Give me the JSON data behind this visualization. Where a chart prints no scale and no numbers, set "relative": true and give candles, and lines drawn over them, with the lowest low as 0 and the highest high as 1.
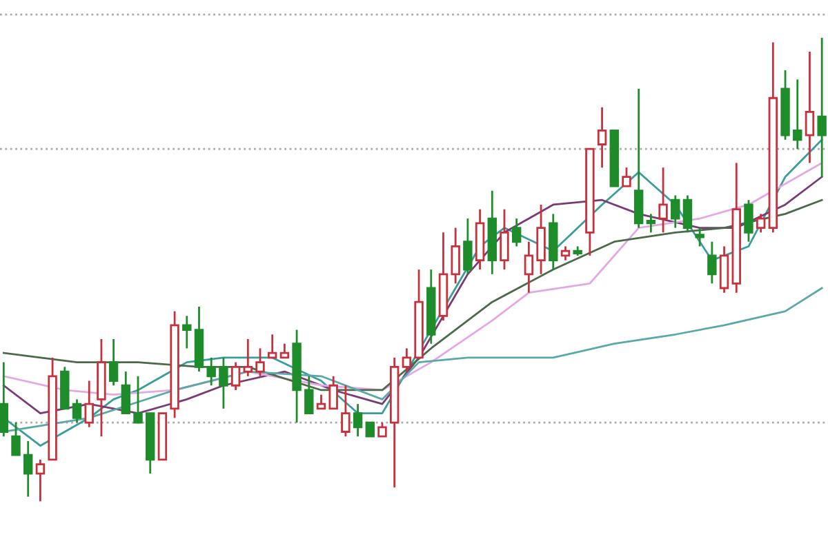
{
  "chart_data": {
    "type": "candlestick",
    "relative": true,
    "categories": [
      null,
      null,
      null,
      null,
      null,
      null,
      null,
      null,
      null,
      null,
      null,
      null,
      null,
      null,
      null,
      null,
      null,
      null,
      null,
      null,
      null,
      null,
      null,
      null,
      null,
      null,
      null,
      null,
      null,
      null,
      null,
      null,
      null,
      null,
      null,
      null,
      null,
      null,
      null,
      null,
      null,
      null,
      null,
      null,
      null,
      null,
      null,
      null,
      null,
      null,
      null,
      null,
      null,
      null,
      null,
      null,
      null,
      null,
      null,
      null,
      null,
      null,
      null,
      null,
      null,
      null,
      null,
      null
    ],
    "ohlc": [
      [
        0.21,
        0.3,
        0.14,
        0.15
      ],
      [
        0.14,
        0.17,
        0.1,
        0.1
      ],
      [
        0.1,
        0.13,
        0.01,
        0.06
      ],
      [
        0.06,
        0.09,
        0.0,
        0.08
      ],
      [
        0.09,
        0.31,
        0.09,
        0.27
      ],
      [
        0.28,
        0.29,
        0.2,
        0.2
      ],
      [
        0.21,
        0.22,
        0.17,
        0.18
      ],
      [
        0.17,
        0.26,
        0.16,
        0.21
      ],
      [
        0.22,
        0.35,
        0.14,
        0.3
      ],
      [
        0.3,
        0.35,
        0.25,
        0.26
      ],
      [
        0.25,
        0.28,
        0.19,
        0.19
      ],
      [
        0.19,
        0.27,
        0.17,
        0.17
      ],
      [
        0.19,
        0.19,
        0.06,
        0.09
      ],
      [
        0.09,
        0.19,
        0.09,
        0.19
      ],
      [
        0.2,
        0.41,
        0.18,
        0.38
      ],
      [
        0.38,
        0.4,
        0.33,
        0.37
      ],
      [
        0.37,
        0.42,
        0.28,
        0.29
      ],
      [
        0.29,
        0.31,
        0.25,
        0.27
      ],
      [
        0.29,
        0.31,
        0.2,
        0.25
      ],
      [
        0.25,
        0.3,
        0.24,
        0.29
      ],
      [
        0.28,
        0.35,
        0.27,
        0.29
      ],
      [
        0.28,
        0.33,
        0.27,
        0.3
      ],
      [
        0.31,
        0.36,
        0.31,
        0.32
      ],
      [
        0.31,
        0.34,
        0.31,
        0.32
      ],
      [
        0.34,
        0.37,
        0.17,
        0.24
      ],
      [
        0.24,
        0.27,
        0.19,
        0.19
      ],
      [
        0.2,
        0.23,
        0.2,
        0.21
      ],
      [
        0.2,
        0.27,
        0.2,
        0.25
      ],
      [
        0.15,
        0.25,
        0.14,
        0.19
      ],
      [
        0.19,
        0.21,
        0.14,
        0.16
      ],
      [
        0.17,
        0.17,
        0.14,
        0.14
      ],
      [
        0.14,
        0.17,
        0.14,
        0.16
      ],
      [
        0.17,
        0.31,
        0.03,
        0.29
      ],
      [
        0.29,
        0.33,
        0.28,
        0.31
      ],
      [
        0.31,
        0.5,
        0.31,
        0.43
      ],
      [
        0.46,
        0.5,
        0.34,
        0.36
      ],
      [
        0.4,
        0.58,
        0.39,
        0.49
      ],
      [
        0.49,
        0.59,
        0.47,
        0.55
      ],
      [
        0.56,
        0.61,
        0.49,
        0.5
      ],
      [
        0.52,
        0.63,
        0.5,
        0.6
      ],
      [
        0.61,
        0.67,
        0.49,
        0.52
      ],
      [
        0.52,
        0.63,
        0.5,
        0.58
      ],
      [
        0.59,
        0.61,
        0.55,
        0.56
      ],
      [
        0.49,
        0.56,
        0.45,
        0.53
      ],
      [
        0.52,
        0.64,
        0.49,
        0.59
      ],
      [
        0.6,
        0.62,
        0.5,
        0.52
      ],
      [
        0.53,
        0.55,
        0.52,
        0.54
      ],
      [
        0.54,
        0.55,
        0.53,
        0.535
      ],
      [
        0.58,
        0.76,
        0.53,
        0.76
      ],
      [
        0.77,
        0.85,
        0.72,
        0.8
      ],
      [
        0.8,
        0.8,
        0.68,
        0.68
      ],
      [
        0.68,
        0.72,
        0.68,
        0.7
      ],
      [
        0.67,
        0.89,
        0.59,
        0.6
      ],
      [
        0.605,
        0.62,
        0.58,
        0.6
      ],
      [
        0.61,
        0.72,
        0.58,
        0.64
      ],
      [
        0.65,
        0.66,
        0.59,
        0.61
      ],
      [
        0.65,
        0.66,
        0.58,
        0.59
      ],
      [
        0.575,
        0.59,
        0.55,
        0.57
      ],
      [
        0.53,
        0.56,
        0.47,
        0.49
      ],
      [
        0.46,
        0.55,
        0.45,
        0.53
      ],
      [
        0.47,
        0.73,
        0.45,
        0.63
      ],
      [
        0.64,
        0.65,
        0.56,
        0.58
      ],
      [
        0.59,
        0.62,
        0.58,
        0.61
      ],
      [
        0.59,
        0.99,
        0.58,
        0.87
      ],
      [
        0.89,
        0.93,
        0.78,
        0.79
      ],
      [
        0.8,
        0.91,
        0.76,
        0.78
      ],
      [
        0.79,
        0.97,
        0.73,
        0.84
      ],
      [
        0.83,
        1.0,
        0.7,
        0.79
      ]
    ],
    "colors": [
      "#1e8c2a",
      "#1e8c2a",
      "#1e8c2a",
      "#c8303c",
      "#c8303c",
      "#1e8c2a",
      "#1e8c2a",
      "#c8303c",
      "#c8303c",
      "#1e8c2a",
      "#1e8c2a",
      "#1e8c2a",
      "#1e8c2a",
      "#c8303c",
      "#c8303c",
      "#1e8c2a",
      "#1e8c2a",
      "#1e8c2a",
      "#1e8c2a",
      "#c8303c",
      "#c8303c",
      "#c8303c",
      "#c8303c",
      "#c8303c",
      "#1e8c2a",
      "#1e8c2a",
      "#c8303c",
      "#c8303c",
      "#c8303c",
      "#1e8c2a",
      "#1e8c2a",
      "#c8303c",
      "#c8303c",
      "#c8303c",
      "#c8303c",
      "#1e8c2a",
      "#c8303c",
      "#c8303c",
      "#1e8c2a",
      "#c8303c",
      "#1e8c2a",
      "#c8303c",
      "#1e8c2a",
      "#c8303c",
      "#c8303c",
      "#1e8c2a",
      "#c8303c",
      "#1e8c2a",
      "#c8303c",
      "#c8303c",
      "#1e8c2a",
      "#c8303c",
      "#1e8c2a",
      "#1e8c2a",
      "#c8303c",
      "#1e8c2a",
      "#1e8c2a",
      "#1e8c2a",
      "#1e8c2a",
      "#c8303c",
      "#c8303c",
      "#1e8c2a",
      "#c8303c",
      "#c8303c",
      "#1e8c2a",
      "#1e8c2a",
      "#c8303c",
      "#1e8c2a"
    ],
    "series": [
      {
        "type": "line",
        "color": "#3a9c9c",
        "values": [
          0.18,
          null,
          0.14,
          0.12,
          null,
          null,
          null,
          0.18,
          null,
          0.22,
          null,
          0.24,
          null,
          null,
          null,
          0.3,
          null,
          null,
          0.31,
          null,
          null,
          null,
          0.31,
          null,
          null,
          null,
          0.26,
          null,
          null,
          0.19,
          null,
          0.19,
          null,
          0.28,
          null,
          null,
          null,
          null,
          null,
          0.55,
          null,
          0.59,
          null,
          null,
          null,
          0.54,
          null,
          null,
          null,
          0.64,
          null,
          null,
          0.71,
          null,
          null,
          0.64,
          null,
          null,
          0.52,
          null,
          null,
          0.55,
          null,
          null,
          0.7,
          null,
          null,
          0.78
        ]
      },
      {
        "type": "line",
        "color": "#7a3a78",
        "values": [
          0.25,
          null,
          null,
          0.19,
          null,
          null,
          null,
          0.21,
          null,
          null,
          null,
          0.19,
          null,
          null,
          null,
          0.22,
          null,
          null,
          0.25,
          null,
          null,
          null,
          null,
          0.28,
          null,
          null,
          null,
          0.24,
          null,
          null,
          null,
          0.21,
          null,
          null,
          0.31,
          null,
          null,
          null,
          0.49,
          null,
          null,
          0.58,
          null,
          null,
          null,
          0.64,
          null,
          null,
          null,
          0.65,
          null,
          null,
          0.62,
          null,
          null,
          null,
          null,
          0.59,
          null,
          null,
          0.59,
          null,
          null,
          null,
          0.64,
          null,
          null,
          0.7
        ]
      },
      {
        "type": "line",
        "color": "#e4a8e4",
        "values": [
          0.27,
          null,
          null,
          null,
          null,
          0.24,
          null,
          null,
          null,
          0.23,
          null,
          null,
          null,
          null,
          0.24,
          null,
          null,
          null,
          null,
          null,
          0.28,
          null,
          null,
          null,
          null,
          null,
          0.25,
          null,
          null,
          null,
          null,
          0.24,
          null,
          null,
          null,
          0.3,
          null,
          null,
          null,
          null,
          0.39,
          null,
          null,
          0.45,
          null,
          null,
          null,
          null,
          0.47,
          null,
          null,
          null,
          0.59,
          null,
          null,
          null,
          null,
          0.61,
          null,
          null,
          null,
          0.64,
          null,
          null,
          null,
          null,
          null,
          0.73
        ]
      },
      {
        "type": "line",
        "color": "#4a6a4a",
        "values": [
          0.32,
          null,
          null,
          null,
          null,
          null,
          0.3,
          null,
          null,
          null,
          null,
          0.3,
          null,
          null,
          null,
          null,
          0.29,
          null,
          null,
          null,
          0.29,
          null,
          null,
          null,
          null,
          null,
          0.24,
          null,
          null,
          null,
          null,
          0.24,
          null,
          null,
          null,
          0.33,
          null,
          null,
          null,
          null,
          0.43,
          null,
          null,
          null,
          null,
          0.5,
          null,
          null,
          null,
          null,
          0.56,
          null,
          null,
          null,
          null,
          0.58,
          null,
          null,
          null,
          0.59,
          null,
          null,
          null,
          null,
          0.62,
          null,
          null,
          0.65
        ]
      },
      {
        "type": "line",
        "color": "#5aa8a8",
        "values": [
          0.15,
          null,
          null,
          null,
          null,
          null,
          null,
          0.18,
          null,
          null,
          null,
          null,
          null,
          null,
          0.24,
          null,
          null,
          null,
          null,
          null,
          0.28,
          null,
          null,
          null,
          null,
          null,
          0.27,
          null,
          null,
          null,
          null,
          0.22,
          null,
          null,
          0.3,
          null,
          null,
          null,
          0.31,
          null,
          null,
          null,
          null,
          null,
          null,
          0.31,
          null,
          null,
          null,
          null,
          0.34,
          null,
          null,
          null,
          null,
          0.36,
          null,
          null,
          null,
          0.38,
          null,
          null,
          null,
          null,
          0.41,
          null,
          null,
          0.46
        ]
      }
    ],
    "ref_lines": [
      {
        "axis": "y",
        "value": 1.05,
        "color": "#aaaaaa",
        "line_style": "dotted"
      },
      {
        "axis": "y",
        "value": 0.76,
        "color": "#aaaaaa",
        "line_style": "dotted"
      },
      {
        "axis": "y",
        "value": 0.17,
        "color": "#aaaaaa",
        "line_style": "dotted"
      }
    ]
  }
}
